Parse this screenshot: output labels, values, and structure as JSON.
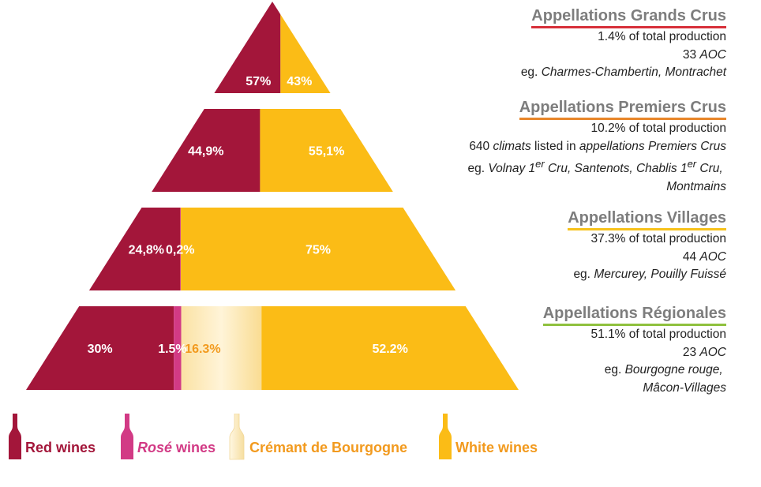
{
  "chart_data": {
    "type": "pyramid-stacked-bar",
    "categories": [
      "Appellations Grands Crus",
      "Appellations Premiers Crus",
      "Appellations Villages",
      "Appellations Régionales"
    ],
    "series": [
      {
        "name": "Red wines",
        "color": "#a3163a",
        "values": [
          57,
          44.9,
          24.8,
          30
        ]
      },
      {
        "name": "Rosé wines",
        "color": "#d23a85",
        "values": [
          0,
          0,
          0.2,
          1.5
        ]
      },
      {
        "name": "Crémant de Bourgogne",
        "color": "#fbe8b6",
        "values": [
          0,
          0,
          0,
          16.3
        ]
      },
      {
        "name": "White wines",
        "color": "#fbbc16",
        "values": [
          43,
          55.1,
          75,
          52.2
        ]
      }
    ],
    "segment_labels": [
      [
        "57%",
        "",
        "",
        "43%"
      ],
      [
        "44,9%",
        "",
        "",
        "55,1%"
      ],
      [
        "24,8%",
        "0,2%",
        "",
        "75%"
      ],
      [
        "30%",
        "1.5%",
        "16.3%",
        "52.2%"
      ]
    ]
  },
  "tiers": [
    {
      "title": "Appellations Grands Crus",
      "underline_color": "#d7303a",
      "production": "1.4% of total production",
      "aoc_count": "33",
      "aoc_word": "AOC",
      "eg_prefix": "eg.",
      "examples": "Charmes-Chambertin, Montrachet"
    },
    {
      "title": "Appellations Premiers Crus",
      "underline_color": "#e8862a",
      "production": "10.2% of total production",
      "climats_count": "640",
      "climats_word": "climats",
      "climats_text": "listed in",
      "climats_tail": "appellations Premiers Crus",
      "eg_prefix": "eg.",
      "examples_1": "Volnay 1",
      "sup": "er",
      "examples_2": "Cru, Santenots, Chablis 1",
      "sup2": "er",
      "examples_3": "Cru,",
      "examples_4": "Montmains"
    },
    {
      "title": "Appellations Villages",
      "underline_color": "#f7c21b",
      "production": "37.3% of total production",
      "aoc_count": "44",
      "aoc_word": "AOC",
      "eg_prefix": "eg.",
      "examples": "Mercurey, Pouilly Fuissé"
    },
    {
      "title": "Appellations Régionales",
      "underline_color": "#8fc13e",
      "production": "51.1% of total production",
      "aoc_count": "23",
      "aoc_word": "AOC",
      "eg_prefix": "eg.",
      "examples_1": "Bourgogne rouge,",
      "examples_2": "Mâcon-Villages"
    }
  ],
  "legend": [
    {
      "label": "Red wines",
      "color": "#a3163a",
      "text_color": "#a3163a"
    },
    {
      "label_italic": "Rosé",
      "label_rest": "wines",
      "color": "#d23a85",
      "text_color": "#d23a85"
    },
    {
      "label": "Crémant de Bourgogne",
      "color": "#fbe8b6",
      "text_color": "#f29a1e"
    },
    {
      "label": "White wines",
      "color": "#fbbc16",
      "text_color": "#f29a1e"
    }
  ]
}
